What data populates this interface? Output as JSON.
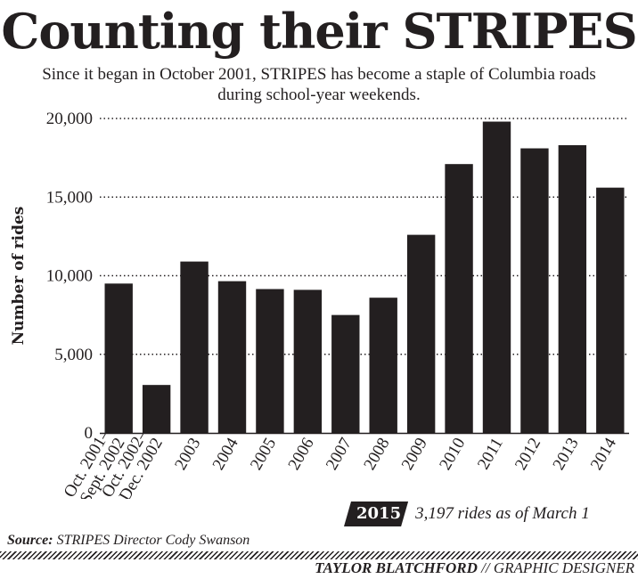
{
  "header": {
    "title": "Counting their STRIPES",
    "subtitle": "Since it began in October 2001, STRIPES has become a staple of Columbia roads during school-year weekends."
  },
  "chart_data": {
    "type": "bar",
    "ylabel": "Number of rides",
    "xlabel": "",
    "ylim": [
      0,
      20000
    ],
    "yticks": [
      0,
      5000,
      10000,
      15000,
      20000
    ],
    "ytick_labels": [
      "0",
      "5,000",
      "10,000",
      "15,000",
      "20,000"
    ],
    "grid": "horizontal dotted",
    "bar_color": "#231f20",
    "categories": [
      [
        "Oct. 2001–",
        "Sept. 2002"
      ],
      [
        "Oct. 2002–",
        "Dec. 2002"
      ],
      [
        "2003"
      ],
      [
        "2004"
      ],
      [
        "2005"
      ],
      [
        "2006"
      ],
      [
        "2007"
      ],
      [
        "2008"
      ],
      [
        "2009"
      ],
      [
        "2010"
      ],
      [
        "2011"
      ],
      [
        "2012"
      ],
      [
        "2013"
      ],
      [
        "2014"
      ]
    ],
    "values": [
      9500,
      3050,
      10900,
      9650,
      9150,
      9100,
      7500,
      8600,
      12600,
      17100,
      19800,
      18100,
      18300,
      15600
    ]
  },
  "note": {
    "year": "2015",
    "text": "3,197 rides as of March 1"
  },
  "footer": {
    "source_label": "Source:",
    "source_text": "STRIPES Director Cody Swanson",
    "credit_name": "TAYLOR BLATCHFORD",
    "credit_role": "// GRAPHIC DESIGNER"
  }
}
